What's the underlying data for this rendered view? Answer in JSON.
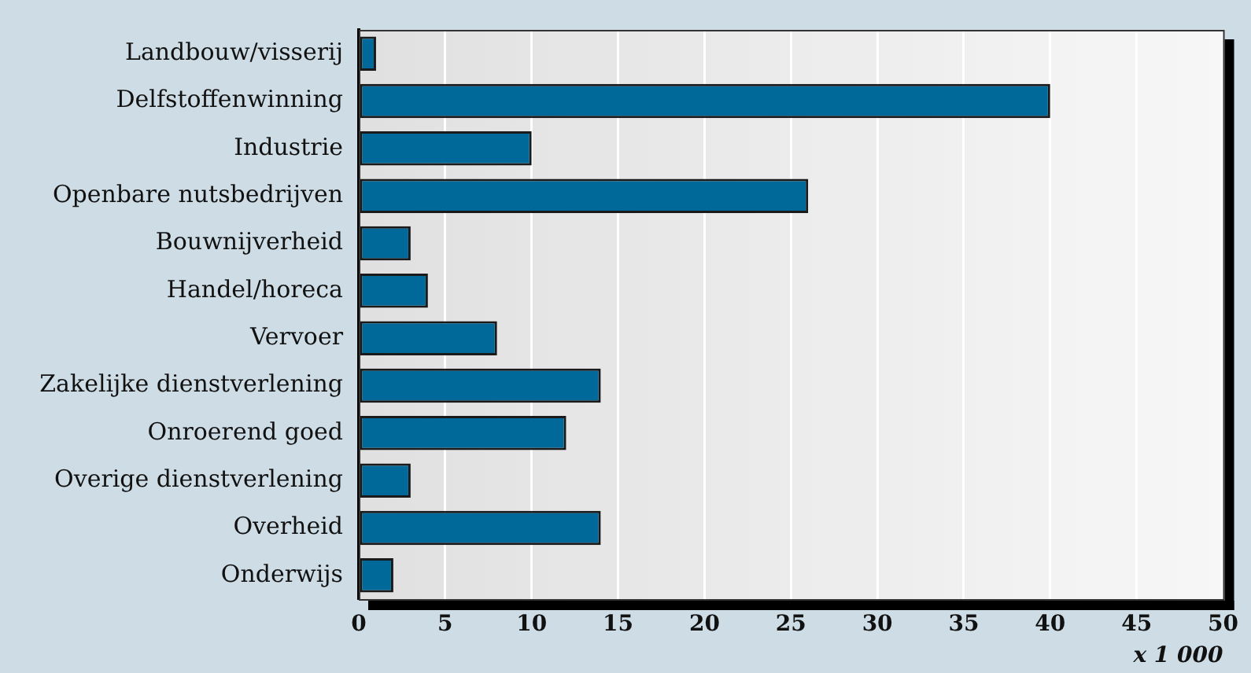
{
  "chart_data": {
    "type": "bar",
    "orientation": "horizontal",
    "xlabel": "x 1 000",
    "categories": [
      "Landbouw/visserij",
      "Delfstoffenwinning",
      "Industrie",
      "Openbare nutsbedrijven",
      "Bouwnijverheid",
      "Handel/horeca",
      "Vervoer",
      "Zakelijke dienstverlening",
      "Onroerend goed",
      "Overige dienstverlening",
      "Overheid",
      "Onderwijs"
    ],
    "values": [
      1,
      40,
      10,
      26,
      3,
      4,
      8,
      14,
      12,
      3,
      14,
      2
    ],
    "color": "#00699a",
    "xlim": [
      0,
      50
    ],
    "xticks": [
      0,
      5,
      10,
      15,
      20,
      25,
      30,
      35,
      40,
      45,
      50
    ],
    "grid": "x"
  }
}
